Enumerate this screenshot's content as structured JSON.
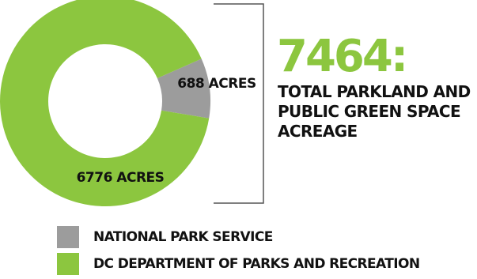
{
  "chart_data": {
    "type": "pie",
    "variant": "donut",
    "categories": [
      "National Park Service",
      "DC Department of Parks and Recreation"
    ],
    "values": [
      688,
      6776
    ],
    "units": "acres",
    "slice_labels": [
      "688 ACRES",
      "6776 ACRES"
    ],
    "colors": [
      "#9c9c9c",
      "#8cc63f"
    ],
    "total": {
      "value_text": "7464:",
      "caption": "TOTAL PARKLAND AND PUBLIC GREEN SPACE ACREAGE"
    },
    "legend": [
      {
        "label": "NATIONAL PARK SERVICE",
        "color": "#9c9c9c"
      },
      {
        "label": "DC DEPARTMENT OF PARKS AND RECREATION",
        "color": "#8cc63f"
      }
    ],
    "legend_position": "bottom"
  }
}
